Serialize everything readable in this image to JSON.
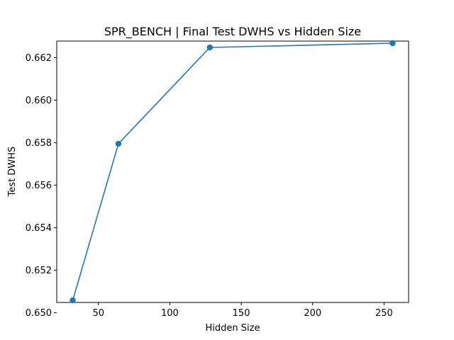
{
  "chart_data": {
    "type": "line",
    "title": "SPR_BENCH | Final Test DWHS vs Hidden Size",
    "xlabel": "Hidden Size",
    "ylabel": "Test DWHS",
    "series": [
      {
        "x": [
          32,
          64,
          128,
          256
        ],
        "y": [
          0.65058,
          0.65795,
          0.66248,
          0.66268
        ],
        "color": "#1f77b4",
        "marker": "circle"
      }
    ],
    "xlim": [
      20.8,
      267.2
    ],
    "ylim": [
      0.65048,
      0.66278
    ],
    "xticks": [
      {
        "value": 50,
        "label": "50"
      },
      {
        "value": 100,
        "label": "100"
      },
      {
        "value": 150,
        "label": "150"
      },
      {
        "value": 200,
        "label": "200"
      },
      {
        "value": 250,
        "label": "250"
      }
    ],
    "yticks": [
      {
        "value": 0.65,
        "label": "0.650"
      },
      {
        "value": 0.652,
        "label": "0.652"
      },
      {
        "value": 0.654,
        "label": "0.654"
      },
      {
        "value": 0.656,
        "label": "0.656"
      },
      {
        "value": 0.658,
        "label": "0.658"
      },
      {
        "value": 0.66,
        "label": "0.660"
      },
      {
        "value": 0.662,
        "label": "0.662"
      }
    ],
    "grid": false,
    "legend": "none"
  }
}
